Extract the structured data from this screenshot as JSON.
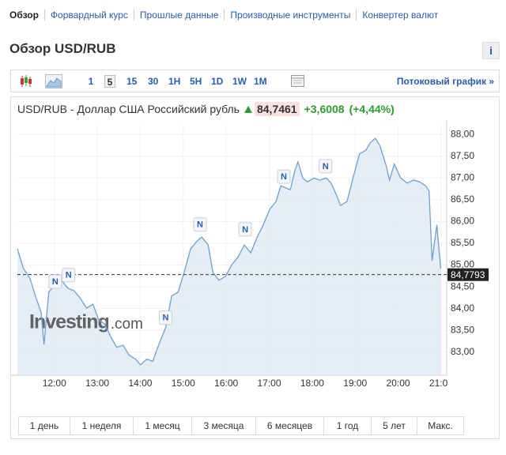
{
  "nav": {
    "items": [
      "Обзор",
      "Форвардный курс",
      "Прошлые данные",
      "Производные инструменты",
      "Конвертер валют"
    ],
    "active": 0
  },
  "header": {
    "title": "Обзор USD/RUB",
    "info": "i"
  },
  "toolbar": {
    "intervals": [
      "1",
      "5",
      "15",
      "30",
      "1H",
      "5H",
      "1D",
      "1W",
      "1M"
    ],
    "selected": 1,
    "streaming": "Потоковый график »"
  },
  "quote": {
    "instrument": "USD/RUB - Доллар США Российский рубль",
    "price": "84,7461",
    "change": "+3,6008",
    "change_pct": "(+4,44%)"
  },
  "chart_data": {
    "type": "area",
    "color": "#6f9fd3",
    "fill": "#e1eaf4",
    "grid": true,
    "xlim": [
      11.14,
      21.13
    ],
    "ylim": [
      82.47,
      88.22
    ],
    "xticks": [
      {
        "value": 12,
        "label": "12:00"
      },
      {
        "value": 13,
        "label": "13:00"
      },
      {
        "value": 14,
        "label": "14:00"
      },
      {
        "value": 15,
        "label": "15:00"
      },
      {
        "value": 16,
        "label": "16:00"
      },
      {
        "value": 17,
        "label": "17:00"
      },
      {
        "value": 18,
        "label": "18:00"
      },
      {
        "value": 19,
        "label": "19:00"
      },
      {
        "value": 20,
        "label": "20:00"
      },
      {
        "value": 21,
        "label": "21:00"
      }
    ],
    "yticks": [
      {
        "value": 83,
        "label": "83,00"
      },
      {
        "value": 83.5,
        "label": "83,50"
      },
      {
        "value": 84,
        "label": "84,00"
      },
      {
        "value": 84.5,
        "label": "84,50"
      },
      {
        "value": 85,
        "label": "85,00"
      },
      {
        "value": 85.5,
        "label": "85,50"
      },
      {
        "value": 86,
        "label": "86,00"
      },
      {
        "value": 86.5,
        "label": "86,50"
      },
      {
        "value": 87,
        "label": "87,00"
      },
      {
        "value": 87.5,
        "label": "87,50"
      },
      {
        "value": 88,
        "label": "88,00"
      }
    ],
    "x": [
      11.14,
      11.28,
      11.43,
      11.56,
      11.69,
      11.76,
      11.87,
      12.02,
      12.17,
      12.31,
      12.46,
      12.61,
      12.75,
      12.9,
      13.03,
      13.17,
      13.3,
      13.45,
      13.6,
      13.74,
      13.89,
      14.0,
      14.15,
      14.29,
      14.44,
      14.59,
      14.73,
      14.88,
      15.02,
      15.17,
      15.32,
      15.43,
      15.58,
      15.69,
      15.83,
      15.98,
      16.13,
      16.28,
      16.42,
      16.57,
      16.72,
      16.86,
      17.01,
      17.16,
      17.27,
      17.38,
      17.49,
      17.6,
      17.67,
      17.78,
      17.89,
      18.04,
      18.18,
      18.33,
      18.44,
      18.55,
      18.66,
      18.81,
      18.95,
      19.1,
      19.25,
      19.36,
      19.47,
      19.58,
      19.72,
      19.8,
      19.91,
      20.06,
      20.21,
      20.35,
      20.5,
      20.64,
      20.72,
      20.79,
      20.9,
      20.99
    ],
    "values": [
      85.37,
      84.92,
      84.7,
      84.29,
      83.92,
      83.18,
      84.38,
      84.56,
      84.65,
      84.47,
      84.41,
      84.23,
      84.01,
      84.1,
      83.74,
      83.65,
      83.38,
      83.11,
      83.16,
      82.93,
      82.84,
      82.71,
      82.84,
      82.79,
      83.2,
      83.56,
      84.29,
      84.38,
      84.83,
      85.37,
      85.55,
      85.64,
      85.46,
      84.83,
      84.65,
      84.74,
      85.01,
      85.19,
      85.46,
      85.28,
      85.64,
      85.92,
      86.28,
      86.46,
      86.82,
      86.77,
      86.73,
      87.18,
      87.37,
      87.0,
      86.91,
      87.0,
      86.95,
      87.0,
      86.88,
      86.64,
      86.37,
      86.46,
      87.0,
      87.55,
      87.64,
      87.82,
      87.91,
      87.73,
      87.28,
      86.95,
      87.32,
      87.0,
      86.88,
      86.95,
      86.91,
      86.82,
      86.7,
      85.1,
      85.92,
      84.92
    ],
    "reference": {
      "value": 84.7793,
      "label": "84,7793"
    },
    "annotations": [
      {
        "x": 12.02,
        "y": 84.61,
        "label": "N"
      },
      {
        "x": 12.33,
        "y": 84.76,
        "label": "N"
      },
      {
        "x": 14.59,
        "y": 83.78,
        "label": "N"
      },
      {
        "x": 15.39,
        "y": 85.92,
        "label": "N"
      },
      {
        "x": 16.44,
        "y": 85.81,
        "label": "N"
      },
      {
        "x": 17.34,
        "y": 87.02,
        "label": "N"
      },
      {
        "x": 18.31,
        "y": 87.26,
        "label": "N"
      }
    ],
    "watermark": {
      "name": "Investing",
      "suffix": ".com"
    }
  },
  "ranges": [
    "1 день",
    "1 неделя",
    "1 месяц",
    "3 месяца",
    "6 месяцев",
    "1 год",
    "5 лет",
    "Макс."
  ]
}
